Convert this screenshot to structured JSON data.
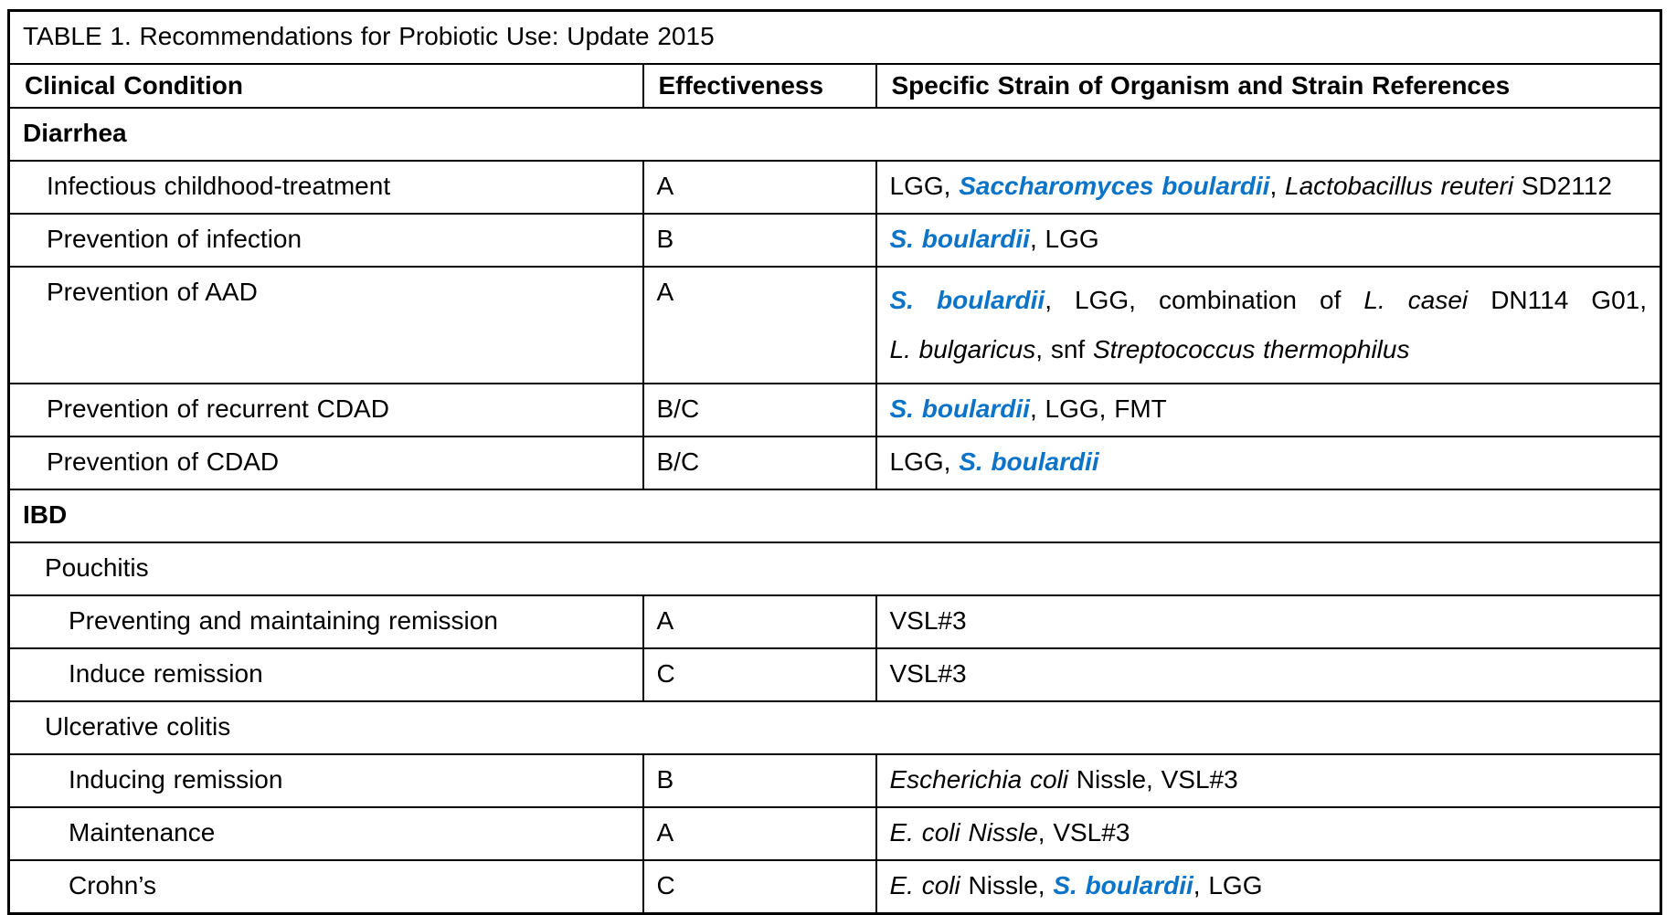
{
  "colors": {
    "accent_blue": "#0c74c8",
    "border": "#000000",
    "text": "#000000",
    "background": "#ffffff"
  },
  "table": {
    "title": "TABLE 1. Recommendations for Probiotic Use: Update 2015",
    "columns": [
      "Clinical Condition",
      "Effectiveness",
      "Specific Strain of Organism and Strain References"
    ],
    "rows": [
      {
        "type": "section",
        "bold": true,
        "indent": 0,
        "label": "Diarrhea"
      },
      {
        "type": "data",
        "indent": 1,
        "condition": "Infectious childhood-treatment",
        "effectiveness": "A",
        "justify": true,
        "strains": [
          {
            "text": "LGG, ",
            "style": "plain"
          },
          {
            "text": "Saccharomyces boulardii",
            "style": "blue"
          },
          {
            "text": ", ",
            "style": "plain"
          },
          {
            "text": "Lactobacillus reuteri",
            "style": "italic"
          },
          {
            "text": " SD2112",
            "style": "plain"
          }
        ]
      },
      {
        "type": "data",
        "indent": 1,
        "condition": "Prevention of infection",
        "effectiveness": "B",
        "strains": [
          {
            "text": "S. boulardii",
            "style": "blue"
          },
          {
            "text": ", LGG",
            "style": "plain"
          }
        ]
      },
      {
        "type": "data",
        "indent": 1,
        "condition": "Prevention of AAD",
        "effectiveness": "A",
        "justify": true,
        "double_spaced": true,
        "strains": [
          {
            "text": "S. boulardii",
            "style": "blue"
          },
          {
            "text": ", LGG, combination of ",
            "style": "plain"
          },
          {
            "text": "L. casei",
            "style": "italic"
          },
          {
            "text": " DN114 G01, ",
            "style": "plain"
          },
          {
            "text": "L. bulgaricus",
            "style": "italic"
          },
          {
            "text": ", snf ",
            "style": "plain"
          },
          {
            "text": "Streptococcus thermophilus",
            "style": "italic"
          }
        ]
      },
      {
        "type": "data",
        "indent": 1,
        "condition": "Prevention of recurrent CDAD",
        "effectiveness": "B/C",
        "strains": [
          {
            "text": "S. boulardii",
            "style": "blue"
          },
          {
            "text": ", LGG, FMT",
            "style": "plain"
          }
        ]
      },
      {
        "type": "data",
        "indent": 1,
        "condition": "Prevention of CDAD",
        "effectiveness": "B/C",
        "strains": [
          {
            "text": "LGG, ",
            "style": "plain"
          },
          {
            "text": "S. boulardii",
            "style": "blue"
          }
        ]
      },
      {
        "type": "section",
        "bold": true,
        "indent": 0,
        "label": "IBD"
      },
      {
        "type": "section",
        "bold": false,
        "indent": 1,
        "label": "Pouchitis"
      },
      {
        "type": "data",
        "indent": 2,
        "condition": "Preventing and maintaining remission",
        "effectiveness": "A",
        "strains": [
          {
            "text": "VSL#3",
            "style": "plain"
          }
        ]
      },
      {
        "type": "data",
        "indent": 2,
        "condition": "Induce remission",
        "effectiveness": "C",
        "strains": [
          {
            "text": "VSL#3",
            "style": "plain"
          }
        ]
      },
      {
        "type": "section",
        "bold": false,
        "indent": 1,
        "label": "Ulcerative colitis"
      },
      {
        "type": "data",
        "indent": 2,
        "condition": "Inducing remission",
        "effectiveness": "B",
        "strains": [
          {
            "text": "Escherichia coli",
            "style": "italic"
          },
          {
            "text": " Nissle, VSL#3",
            "style": "plain"
          }
        ]
      },
      {
        "type": "data",
        "indent": 2,
        "condition": "Maintenance",
        "effectiveness": "A",
        "strains": [
          {
            "text": "E. coli Nissle",
            "style": "italic"
          },
          {
            "text": ", VSL#3",
            "style": "plain"
          }
        ]
      },
      {
        "type": "data",
        "indent": 2,
        "condition": "Crohn’s",
        "effectiveness": "C",
        "strains": [
          {
            "text": "E. coli",
            "style": "italic"
          },
          {
            "text": " Nissle, ",
            "style": "plain"
          },
          {
            "text": "S. boulardii",
            "style": "blue"
          },
          {
            "text": ", LGG",
            "style": "plain"
          }
        ]
      }
    ]
  }
}
